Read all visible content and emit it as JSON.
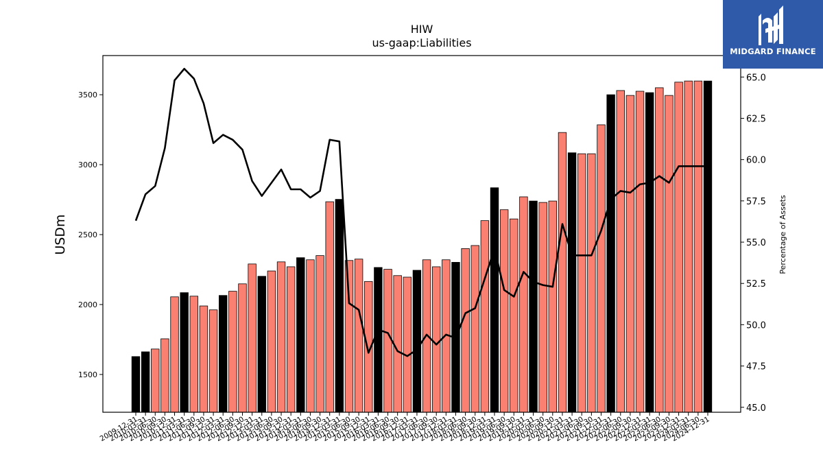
{
  "logo": {
    "text": "MIDGARD FINANCE",
    "background": "#2f5aa9"
  },
  "chart_data": {
    "type": "bar",
    "title": "HIW",
    "subtitle": "us-gaap:Liabilities",
    "ylabel": "USDm",
    "y2label": "Percentage of Assets",
    "ylim": [
      1230,
      3780
    ],
    "y2lim": [
      44.7,
      66.3
    ],
    "yticks": [
      1500,
      2000,
      2500,
      3000,
      3500
    ],
    "y2ticks": [
      "45.0",
      "47.5",
      "50.0",
      "52.5",
      "55.0",
      "57.5",
      "60.0",
      "62.5",
      "65.0"
    ],
    "colors": {
      "annual": "#000000",
      "quarterly": "#fa8072",
      "line": "#000000"
    },
    "categories": [
      "2009-12-31",
      "2010-03-31",
      "2010-06-30",
      "2010-09-30",
      "2010-12-31",
      "2011-03-31",
      "2011-06-30",
      "2011-09-30",
      "2011-12-31",
      "2012-03-31",
      "2012-06-30",
      "2012-09-30",
      "2012-12-31",
      "2013-03-31",
      "2013-06-30",
      "2013-09-30",
      "2013-12-31",
      "2014-03-31",
      "2014-06-30",
      "2014-09-30",
      "2014-12-31",
      "2015-03-31",
      "2015-06-30",
      "2015-09-30",
      "2015-12-31",
      "2016-03-31",
      "2016-06-30",
      "2016-09-30",
      "2016-12-31",
      "2017-03-31",
      "2017-06-30",
      "2017-09-30",
      "2017-12-31",
      "2018-03-31",
      "2018-06-30",
      "2018-09-30",
      "2018-12-31",
      "2019-03-31",
      "2019-06-30",
      "2019-09-30",
      "2019-12-31",
      "2020-03-31",
      "2020-06-30",
      "2020-09-30",
      "2020-12-31",
      "2021-03-31",
      "2021-06-30",
      "2021-09-30",
      "2021-12-31",
      "2022-03-31",
      "2022-06-30",
      "2022-09-30",
      "2022-12-31",
      "2023-03-31",
      "2023-06-30",
      "2023-09-30",
      "2023-12-31",
      "2024-03-31",
      "2024-06-30",
      "2024-12-31"
    ],
    "xticklabels": [
      "2009-12-31",
      "2010-03-31",
      "2010-06-30",
      "2010-09-30",
      "2010-12-31",
      "2011-03-31",
      "2011-06-30",
      "2011-09-30",
      "2011-12-31",
      "2012-03-31",
      "2012-06-30",
      "2012-09-30",
      "2012-12-31",
      "2013-03-31",
      "2013-06-30",
      "2013-09-30",
      "2013-12-31",
      "2014-03-31",
      "2014-06-30",
      "2014-09-30",
      "2014-12-31",
      "2015-03-31",
      "2015-06-30",
      "2015-09-30",
      "2015-12-31",
      "2016-03-31",
      "2016-06-30",
      "2016-09-30",
      "2016-12-31",
      "2017-03-31",
      "2017-06-30",
      "2017-09-30",
      "2017-12-31",
      "2018-03-31",
      "2018-06-30",
      "2018-09-30",
      "2018-12-31",
      "2019-03-31",
      "2019-06-30",
      "2019-09-30",
      "2019-12-31",
      "2020-03-31",
      "2020-06-30",
      "2020-09-30",
      "2020-12-31",
      "2021-03-31",
      "2021-06-30",
      "2021-09-30",
      "2021-12-31",
      "2022-03-31",
      "2022-06-30",
      "2022-09-30",
      "2022-12-31",
      "2023-03-31",
      "2023-06-30",
      "2023-09-30",
      "2023-12-31",
      "2024-03-31",
      "2024-06-30",
      "2024-12-31"
    ],
    "series": [
      {
        "type": "bar",
        "values": [
          1628,
          1662,
          1682,
          1755,
          2055,
          2085,
          2060,
          1990,
          1962,
          2065,
          2095,
          2148,
          2290,
          2202,
          2240,
          2305,
          2270,
          2335,
          2320,
          2350,
          2735,
          2752,
          2315,
          2325,
          2165,
          2265,
          2252,
          2207,
          2196,
          2245,
          2320,
          2270,
          2320,
          2302,
          2400,
          2422,
          2600,
          2835,
          2678,
          2612,
          2770,
          2740,
          2730,
          2740,
          3230,
          3085,
          3078,
          3078,
          3285,
          3500,
          3530,
          3495,
          3525,
          3515,
          3550,
          3495,
          3590,
          3598,
          3598,
          3598
        ],
        "annual": [
          true,
          true,
          false,
          false,
          false,
          true,
          false,
          false,
          false,
          true,
          false,
          false,
          false,
          true,
          false,
          false,
          false,
          true,
          false,
          false,
          false,
          true,
          false,
          false,
          false,
          true,
          false,
          false,
          false,
          true,
          false,
          false,
          false,
          true,
          false,
          false,
          false,
          true,
          false,
          false,
          false,
          true,
          false,
          false,
          false,
          true,
          false,
          false,
          false,
          true,
          false,
          false,
          false,
          true,
          false,
          false,
          false,
          false,
          false,
          true
        ]
      },
      {
        "type": "line",
        "axis": "right",
        "values": [
          56.3,
          57.9,
          58.4,
          60.7,
          64.8,
          65.5,
          64.9,
          63.4,
          61.0,
          61.5,
          61.2,
          60.6,
          58.7,
          57.8,
          58.6,
          59.4,
          58.2,
          58.2,
          57.7,
          58.1,
          61.2,
          61.1,
          51.3,
          50.9,
          48.3,
          49.7,
          49.5,
          48.4,
          48.1,
          48.5,
          49.4,
          48.8,
          49.4,
          49.2,
          50.7,
          51.0,
          52.8,
          54.6,
          52.1,
          51.7,
          53.2,
          52.6,
          52.4,
          52.3,
          56.1,
          54.2,
          54.2,
          54.2,
          55.7,
          57.6,
          58.1,
          58.0,
          58.5,
          58.6,
          59.0,
          58.6,
          59.6,
          59.6,
          59.6,
          59.6
        ]
      }
    ]
  }
}
